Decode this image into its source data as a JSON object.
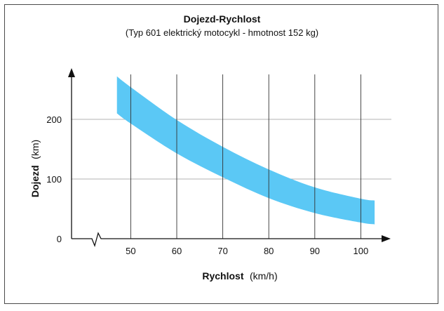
{
  "chart_data": {
    "type": "area",
    "title": "Dojezd-Rychlost",
    "subtitle": "(Typ 601 elektrický motocykl - hmotnost 152 kg)",
    "xlabel_bold": "Rychlost",
    "xlabel_unit": "(km/h)",
    "ylabel_bold": "Dojezd",
    "ylabel_unit": "(km)",
    "x_ticks": [
      "50",
      "60",
      "70",
      "80",
      "90",
      "100"
    ],
    "y_ticks": [
      "0",
      "100",
      "200"
    ],
    "xlim": [
      45,
      105
    ],
    "ylim": [
      0,
      280
    ],
    "grid": true,
    "band_color": "#5bc8f5",
    "series": [
      {
        "band": "upper",
        "x": [
          47,
          50,
          60,
          70,
          80,
          90,
          100,
          103
        ],
        "y": [
          272,
          254,
          199,
          154,
          116,
          86,
          67,
          64
        ]
      },
      {
        "band": "lower",
        "x": [
          47,
          50,
          60,
          70,
          80,
          90,
          100,
          103
        ],
        "y": [
          210,
          193,
          143,
          103,
          68,
          43,
          27,
          24
        ]
      }
    ]
  }
}
